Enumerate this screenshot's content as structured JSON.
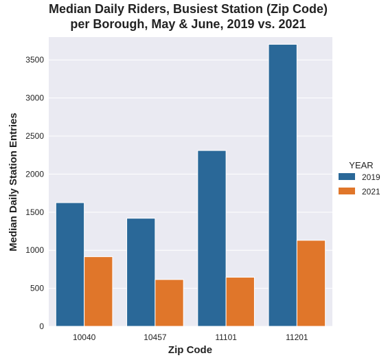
{
  "chart_data": {
    "type": "bar",
    "title_lines": [
      "Median Daily Riders, Busiest Station (Zip Code)",
      "per Borough, May & June, 2019 vs. 2021"
    ],
    "xlabel": "Zip Code",
    "ylabel": "Median Daily Station Entries",
    "categories": [
      "10040",
      "10457",
      "11101",
      "11201"
    ],
    "series": [
      {
        "name": "2019",
        "color": "#2a6898",
        "values": [
          1625,
          1420,
          2310,
          3705
        ]
      },
      {
        "name": "2021",
        "color": "#e0762a",
        "values": [
          915,
          615,
          645,
          1130
        ]
      }
    ],
    "ylim": [
      0,
      3800
    ],
    "yticks": [
      0,
      500,
      1000,
      1500,
      2000,
      2500,
      3000,
      3500
    ],
    "grid": true,
    "legend": {
      "title": "YEAR",
      "placement": "right"
    },
    "background_color": "#eaeaf2"
  }
}
